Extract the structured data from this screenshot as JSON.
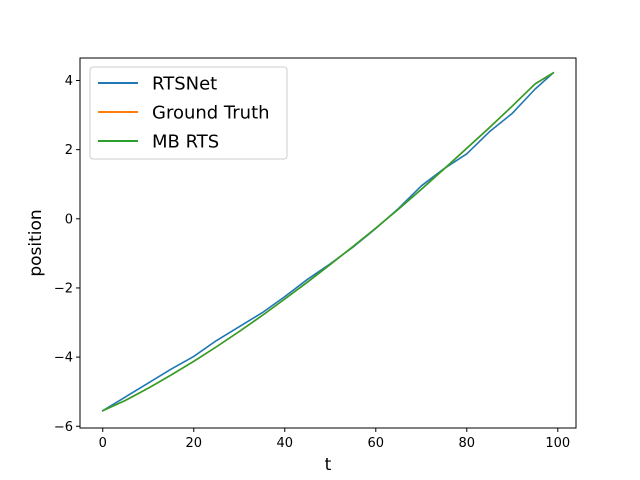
{
  "chart_data": {
    "type": "line",
    "title": "",
    "xlabel": "t",
    "ylabel": "position",
    "xlim": [
      -5,
      104
    ],
    "ylim": [
      -6.05,
      4.65
    ],
    "x_ticks": [
      0,
      20,
      40,
      60,
      80,
      100
    ],
    "y_ticks": [
      -6,
      -4,
      -2,
      0,
      2,
      4
    ],
    "x_tick_labels": [
      "0",
      "20",
      "40",
      "60",
      "80",
      "100"
    ],
    "y_tick_labels": [
      "−6",
      "−4",
      "−2",
      "0",
      "2",
      "4"
    ],
    "grid": false,
    "legend_position": "top-left",
    "series": [
      {
        "name": "RTSNet",
        "color": "#1f77b4",
        "x": [
          0,
          5,
          10,
          15,
          20,
          25,
          30,
          35,
          40,
          45,
          50,
          55,
          60,
          65,
          70,
          75,
          80,
          85,
          90,
          95,
          99
        ],
        "y": [
          -5.55,
          -5.15,
          -4.75,
          -4.35,
          -3.98,
          -3.52,
          -3.12,
          -2.72,
          -2.25,
          -1.75,
          -1.3,
          -0.82,
          -0.28,
          0.3,
          0.95,
          1.45,
          1.88,
          2.52,
          3.05,
          3.75,
          4.22
        ]
      },
      {
        "name": "Ground Truth",
        "color": "#ff7f0e",
        "x": [
          0,
          5,
          10,
          15,
          20,
          25,
          30,
          35,
          40,
          45,
          50,
          55,
          60,
          65,
          70,
          75,
          80,
          85,
          90,
          95,
          99
        ],
        "y": [
          -5.55,
          -5.25,
          -4.9,
          -4.52,
          -4.12,
          -3.7,
          -3.26,
          -2.8,
          -2.32,
          -1.83,
          -1.32,
          -0.8,
          -0.27,
          0.28,
          0.85,
          1.44,
          2.04,
          2.64,
          3.26,
          3.9,
          4.22
        ]
      },
      {
        "name": "MB RTS",
        "color": "#2ca02c",
        "x": [
          0,
          5,
          10,
          15,
          20,
          25,
          30,
          35,
          40,
          45,
          50,
          55,
          60,
          65,
          70,
          75,
          80,
          85,
          90,
          95,
          99
        ],
        "y": [
          -5.55,
          -5.25,
          -4.9,
          -4.52,
          -4.12,
          -3.7,
          -3.26,
          -2.8,
          -2.32,
          -1.83,
          -1.32,
          -0.8,
          -0.27,
          0.28,
          0.85,
          1.44,
          2.04,
          2.64,
          3.26,
          3.9,
          4.22
        ]
      }
    ]
  }
}
